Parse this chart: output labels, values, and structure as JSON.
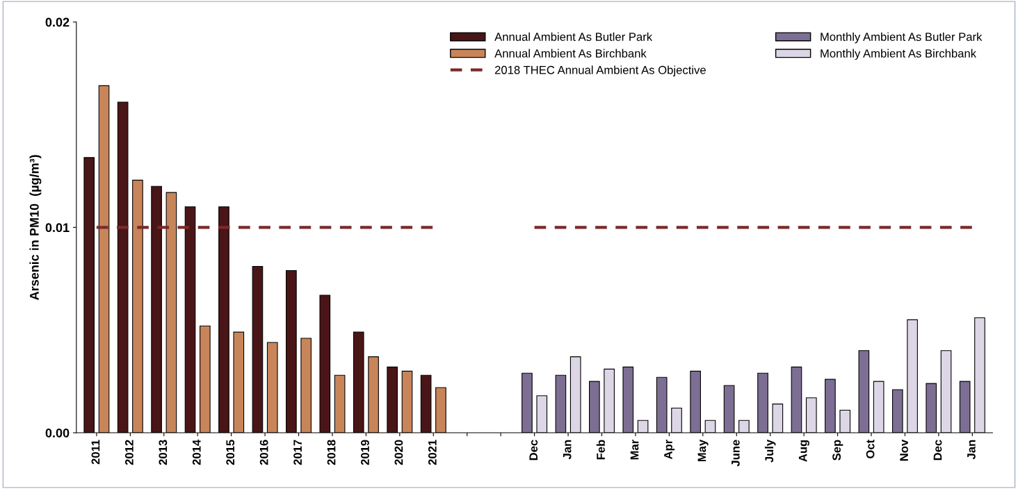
{
  "chart_data": {
    "type": "bar",
    "ylabel": "Arsenic in PM10  (µg/m³)",
    "categories": [
      "2011",
      "2012",
      "2013",
      "2014",
      "2015",
      "2016",
      "2017",
      "2018",
      "2019",
      "2020",
      "2021",
      null,
      null,
      "Dec",
      "Jan",
      "Feb",
      "Mar",
      "Apr",
      "May",
      "June",
      "July",
      "Aug",
      "Sep",
      "Oct",
      "Nov",
      "Dec",
      "Jan"
    ],
    "series": [
      {
        "name": "Annual Ambient As Butler Park",
        "color": "#4a1517",
        "values": [
          0.0134,
          0.0161,
          0.012,
          0.011,
          0.011,
          0.0081,
          0.0079,
          0.0067,
          0.0049,
          0.0032,
          0.0028,
          null,
          null,
          null,
          null,
          null,
          null,
          null,
          null,
          null,
          null,
          null,
          null,
          null,
          null,
          null,
          null
        ]
      },
      {
        "name": "Annual Ambient As Birchbank",
        "color": "#c8855a",
        "values": [
          0.0169,
          0.0123,
          0.0117,
          0.0052,
          0.0049,
          0.0044,
          0.0046,
          0.0028,
          0.0037,
          0.003,
          0.0022,
          null,
          null,
          null,
          null,
          null,
          null,
          null,
          null,
          null,
          null,
          null,
          null,
          null,
          null,
          null,
          null
        ]
      },
      {
        "name": "2018 THEC Annual Ambient As Objective",
        "type": "line",
        "line_style": "dashed",
        "color": "#7a2a2a",
        "values": [
          0.01,
          0.01,
          0.01,
          0.01,
          0.01,
          0.01,
          0.01,
          0.01,
          0.01,
          0.01,
          0.01,
          null,
          null,
          0.01,
          0.01,
          0.01,
          0.01,
          0.01,
          0.01,
          0.01,
          0.01,
          0.01,
          0.01,
          0.01,
          0.01,
          0.01,
          0.01
        ]
      },
      {
        "name": "Monthly Ambient As Butler Park",
        "color": "#7d6e94",
        "values": [
          null,
          null,
          null,
          null,
          null,
          null,
          null,
          null,
          null,
          null,
          null,
          null,
          null,
          0.0029,
          0.0028,
          0.0025,
          0.0032,
          0.0027,
          0.003,
          0.0023,
          0.0029,
          0.0032,
          0.0026,
          0.004,
          0.0021,
          0.0024,
          0.0025
        ]
      },
      {
        "name": "Monthly Ambient As Birchbank",
        "color": "#dcd6e6",
        "values": [
          null,
          null,
          null,
          null,
          null,
          null,
          null,
          null,
          null,
          null,
          null,
          null,
          null,
          0.0018,
          0.0037,
          0.0031,
          0.0006,
          0.0012,
          0.0006,
          0.0006,
          0.0014,
          0.0017,
          0.0011,
          0.0025,
          0.0055,
          0.004,
          0.0056
        ]
      }
    ],
    "ylim": [
      0,
      0.02
    ],
    "yticks": [
      {
        "value": 0,
        "label": "0.00"
      },
      0.01,
      0.02
    ],
    "legend": "top right",
    "grid": false
  }
}
